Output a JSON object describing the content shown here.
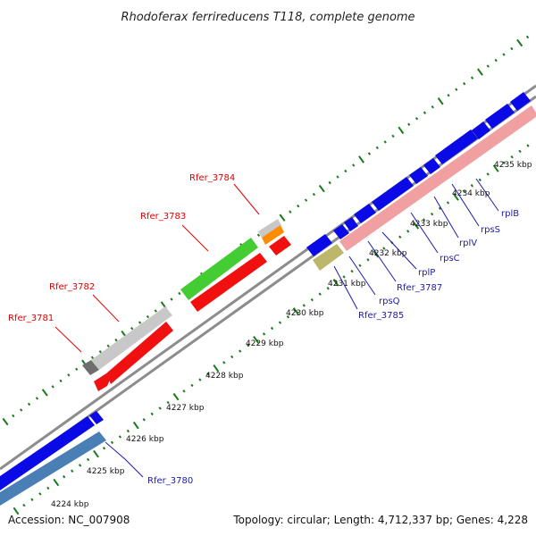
{
  "title": "Rhodoferax ferrireducens T118, complete genome",
  "footer": {
    "accession": "Accession: NC_007908",
    "summary": "Topology: circular; Length: 4,712,337 bp; Genes: 4,228"
  },
  "colors": {
    "backbone": "#8c8c8c",
    "tick": "#1a7a1a",
    "red_label": "#e00000",
    "blue_label": "#1a1aaa",
    "gene_blue": "#0a0ae6",
    "gene_red": "#f01010",
    "gene_pink": "#f0a0a0",
    "gene_green": "#44cc33",
    "gene_gray": "#c8c8c8",
    "gene_darkgray": "#6e6e6e",
    "gene_orange": "#ff8c00",
    "gene_khaki": "#bdb76b",
    "gene_steelblue": "#4a7fb5"
  },
  "kbp_labels": [
    "4224 kbp",
    "4225 kbp",
    "4226 kbp",
    "4227 kbp",
    "4228 kbp",
    "4229 kbp",
    "4230 kbp",
    "4231 kbp",
    "4232 kbp",
    "4233 kbp",
    "4234 kbp",
    "4235 kbp"
  ],
  "gene_labels_top": [
    "Rfer_3781",
    "Rfer_3782",
    "Rfer_3783",
    "Rfer_3784"
  ],
  "gene_labels_bottom": [
    "Rfer_3780",
    "Rfer_3785",
    "rpsQ",
    "Rfer_3787",
    "rplP",
    "rpsC",
    "rplV",
    "rpsS",
    "rplB"
  ]
}
